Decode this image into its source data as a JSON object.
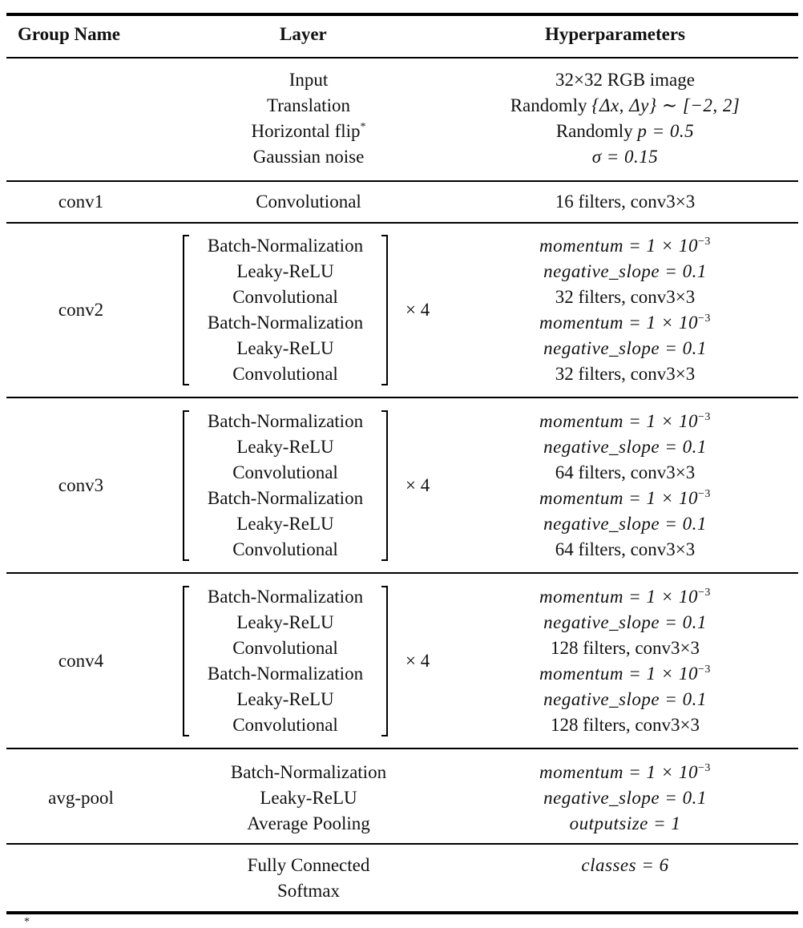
{
  "headers": {
    "group": "Group Name",
    "layer": "Layer",
    "hyper": "Hyperparameters"
  },
  "input_block": {
    "layers": [
      "Input",
      "Translation",
      "Horizontal flip",
      "Gaussian noise"
    ],
    "flip_mark": "*",
    "hyper": {
      "input": "32×32 RGB image",
      "translation_prefix": "Randomly",
      "translation_math": "{Δx, Δy} ∼ [−2, 2]",
      "flip_prefix": "Randomly",
      "flip_math": "p = 0.5",
      "noise_math": "σ = 0.15"
    }
  },
  "conv1": {
    "group": "conv1",
    "layer": "Convolutional",
    "hyper": "16 filters, conv3×3"
  },
  "bracket_layers": [
    "Batch-Normalization",
    "Leaky-ReLU",
    "Convolutional",
    "Batch-Normalization",
    "Leaky-ReLU",
    "Convolutional"
  ],
  "repeat": "× 4",
  "math": {
    "momentum": "momentum = 1 × 10",
    "momentum_exp": "−3",
    "slope": "negative_slope = 0.1",
    "outputsize": "outputsize = 1",
    "classes": "classes = 6"
  },
  "conv2": {
    "group": "conv2",
    "filters": "32 filters, conv3×3"
  },
  "conv3": {
    "group": "conv3",
    "filters": "64 filters, conv3×3"
  },
  "conv4": {
    "group": "conv4",
    "filters": "128 filters, conv3×3"
  },
  "avgpool": {
    "group": "avg-pool",
    "layers": [
      "Batch-Normalization",
      "Leaky-ReLU",
      "Average Pooling"
    ]
  },
  "fc": {
    "layers": [
      "Fully Connected",
      "Softmax"
    ]
  },
  "footnote_mark": "*"
}
